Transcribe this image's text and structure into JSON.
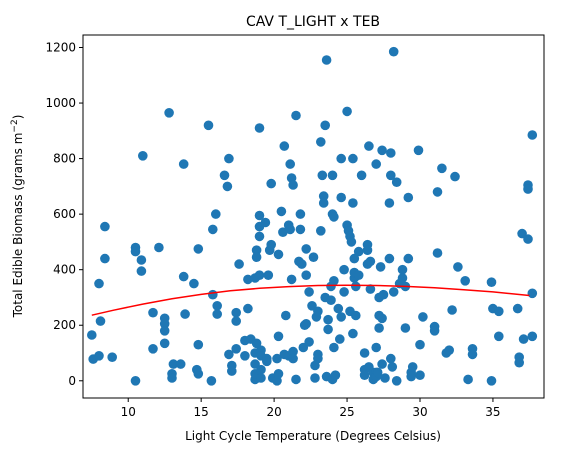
{
  "chart_data": {
    "type": "scatter",
    "title": "CAV T_LIGHT x TEB",
    "xlabel": "Light Cycle Temperature (Degrees Celsius)",
    "ylabel": "Total Edible Biomass (grams m",
    "ylabel_sup": "−2",
    "ylabel_end": ")",
    "xlim": [
      6.9,
      38.5
    ],
    "ylim": [
      -62,
      1245
    ],
    "xticks": [
      10,
      15,
      20,
      25,
      30,
      35
    ],
    "yticks": [
      0,
      200,
      400,
      600,
      800,
      1000,
      1200
    ],
    "grid": false,
    "colors": {
      "points": "#1f77b4",
      "fit": "#ff0000"
    },
    "points": [
      [
        7.5,
        165
      ],
      [
        7.6,
        78
      ],
      [
        8.1,
        215
      ],
      [
        8.0,
        350
      ],
      [
        8.0,
        90
      ],
      [
        8.4,
        440
      ],
      [
        8.4,
        555
      ],
      [
        8.9,
        85
      ],
      [
        10.5,
        0
      ],
      [
        10.5,
        480
      ],
      [
        10.5,
        465
      ],
      [
        10.9,
        435
      ],
      [
        10.9,
        395
      ],
      [
        11.0,
        810
      ],
      [
        11.7,
        115
      ],
      [
        11.7,
        245
      ],
      [
        12.1,
        480
      ],
      [
        12.5,
        225
      ],
      [
        12.5,
        205
      ],
      [
        12.5,
        180
      ],
      [
        12.5,
        135
      ],
      [
        12.8,
        965
      ],
      [
        13.0,
        25
      ],
      [
        13.0,
        10
      ],
      [
        13.1,
        60
      ],
      [
        13.6,
        60
      ],
      [
        13.8,
        780
      ],
      [
        13.8,
        375
      ],
      [
        13.9,
        240
      ],
      [
        14.5,
        350
      ],
      [
        14.7,
        40
      ],
      [
        14.8,
        130
      ],
      [
        14.8,
        475
      ],
      [
        14.8,
        25
      ],
      [
        15.5,
        920
      ],
      [
        15.8,
        310
      ],
      [
        15.8,
        545
      ],
      [
        16.0,
        600
      ],
      [
        16.1,
        270
      ],
      [
        16.1,
        240
      ],
      [
        15.7,
        0
      ],
      [
        16.6,
        740
      ],
      [
        16.8,
        700
      ],
      [
        16.9,
        800
      ],
      [
        16.9,
        95
      ],
      [
        17.1,
        55
      ],
      [
        17.1,
        35
      ],
      [
        17.4,
        115
      ],
      [
        17.4,
        245
      ],
      [
        17.4,
        215
      ],
      [
        17.6,
        420
      ],
      [
        18.0,
        145
      ],
      [
        18.0,
        90
      ],
      [
        18.2,
        260
      ],
      [
        18.2,
        365
      ],
      [
        18.4,
        150
      ],
      [
        18.7,
        5
      ],
      [
        18.7,
        25
      ],
      [
        18.7,
        100
      ],
      [
        18.7,
        60
      ],
      [
        18.7,
        370
      ],
      [
        18.8,
        470
      ],
      [
        18.8,
        445
      ],
      [
        18.8,
        135
      ],
      [
        19.0,
        380
      ],
      [
        19.0,
        595
      ],
      [
        19.0,
        555
      ],
      [
        19.0,
        910
      ],
      [
        19.0,
        520
      ],
      [
        19.1,
        110
      ],
      [
        19.1,
        90
      ],
      [
        19.1,
        40
      ],
      [
        19.1,
        10
      ],
      [
        19.4,
        570
      ],
      [
        19.5,
        80
      ],
      [
        19.5,
        70
      ],
      [
        19.6,
        380
      ],
      [
        19.7,
        470
      ],
      [
        19.8,
        490
      ],
      [
        19.8,
        710
      ],
      [
        19.9,
        10
      ],
      [
        20.2,
        80
      ],
      [
        20.2,
        0
      ],
      [
        20.3,
        455
      ],
      [
        20.3,
        160
      ],
      [
        20.3,
        25
      ],
      [
        20.5,
        610
      ],
      [
        20.6,
        535
      ],
      [
        20.7,
        845
      ],
      [
        20.7,
        95
      ],
      [
        20.8,
        235
      ],
      [
        21.0,
        560
      ],
      [
        21.0,
        90
      ],
      [
        21.1,
        780
      ],
      [
        21.1,
        545
      ],
      [
        21.2,
        730
      ],
      [
        21.2,
        365
      ],
      [
        21.3,
        705
      ],
      [
        21.3,
        105
      ],
      [
        21.3,
        80
      ],
      [
        21.5,
        955
      ],
      [
        21.5,
        5
      ],
      [
        21.7,
        430
      ],
      [
        21.8,
        600
      ],
      [
        21.8,
        545
      ],
      [
        21.9,
        420
      ],
      [
        22.0,
        120
      ],
      [
        22.1,
        200
      ],
      [
        22.2,
        475
      ],
      [
        22.2,
        380
      ],
      [
        22.2,
        205
      ],
      [
        22.4,
        320
      ],
      [
        22.4,
        140
      ],
      [
        22.6,
        270
      ],
      [
        22.7,
        445
      ],
      [
        22.8,
        10
      ],
      [
        22.8,
        55
      ],
      [
        22.9,
        230
      ],
      [
        23.0,
        95
      ],
      [
        23.0,
        80
      ],
      [
        23.0,
        250
      ],
      [
        23.2,
        860
      ],
      [
        23.2,
        540
      ],
      [
        23.3,
        740
      ],
      [
        23.4,
        640
      ],
      [
        23.4,
        665
      ],
      [
        23.5,
        920
      ],
      [
        23.5,
        300
      ],
      [
        23.6,
        1155
      ],
      [
        23.6,
        15
      ],
      [
        23.7,
        185
      ],
      [
        23.7,
        220
      ],
      [
        23.9,
        340
      ],
      [
        23.9,
        290
      ],
      [
        24.0,
        740
      ],
      [
        24.0,
        600
      ],
      [
        24.1,
        360
      ],
      [
        24.1,
        590
      ],
      [
        24.0,
        5
      ],
      [
        24.1,
        120
      ],
      [
        24.2,
        20
      ],
      [
        24.4,
        260
      ],
      [
        24.5,
        150
      ],
      [
        24.6,
        230
      ],
      [
        24.6,
        800
      ],
      [
        24.6,
        660
      ],
      [
        24.8,
        400
      ],
      [
        24.8,
        320
      ],
      [
        25.0,
        970
      ],
      [
        25.0,
        560
      ],
      [
        25.1,
        540
      ],
      [
        25.2,
        520
      ],
      [
        25.2,
        250
      ],
      [
        25.3,
        500
      ],
      [
        25.4,
        170
      ],
      [
        25.4,
        800
      ],
      [
        25.4,
        640
      ],
      [
        25.5,
        370
      ],
      [
        25.5,
        440
      ],
      [
        25.5,
        390
      ],
      [
        25.6,
        235
      ],
      [
        25.6,
        340
      ],
      [
        25.8,
        465
      ],
      [
        25.8,
        380
      ],
      [
        26.0,
        740
      ],
      [
        26.2,
        20
      ],
      [
        26.2,
        40
      ],
      [
        26.2,
        100
      ],
      [
        26.4,
        490
      ],
      [
        26.4,
        470
      ],
      [
        26.4,
        420
      ],
      [
        26.5,
        845
      ],
      [
        26.5,
        50
      ],
      [
        26.6,
        330
      ],
      [
        26.6,
        430
      ],
      [
        26.8,
        5
      ],
      [
        26.8,
        30
      ],
      [
        27.0,
        120
      ],
      [
        27.0,
        30
      ],
      [
        27.0,
        15
      ],
      [
        27.0,
        780
      ],
      [
        27.1,
        30
      ],
      [
        27.2,
        300
      ],
      [
        27.2,
        235
      ],
      [
        27.2,
        190
      ],
      [
        27.3,
        410
      ],
      [
        27.4,
        830
      ],
      [
        27.4,
        60
      ],
      [
        27.4,
        225
      ],
      [
        27.5,
        310
      ],
      [
        27.6,
        10
      ],
      [
        27.9,
        640
      ],
      [
        27.9,
        440
      ],
      [
        28.0,
        820
      ],
      [
        28.0,
        740
      ],
      [
        28.0,
        80
      ],
      [
        28.1,
        50
      ],
      [
        28.2,
        1185
      ],
      [
        28.2,
        320
      ],
      [
        28.4,
        715
      ],
      [
        28.4,
        0
      ],
      [
        28.6,
        350
      ],
      [
        28.8,
        400
      ],
      [
        28.8,
        370
      ],
      [
        29.0,
        340
      ],
      [
        29.0,
        190
      ],
      [
        29.2,
        660
      ],
      [
        29.2,
        440
      ],
      [
        29.4,
        30
      ],
      [
        29.4,
        15
      ],
      [
        29.5,
        50
      ],
      [
        29.9,
        830
      ],
      [
        30.0,
        20
      ],
      [
        30.0,
        130
      ],
      [
        30.2,
        230
      ],
      [
        31.0,
        195
      ],
      [
        31.0,
        180
      ],
      [
        31.2,
        460
      ],
      [
        31.2,
        680
      ],
      [
        31.5,
        765
      ],
      [
        31.8,
        100
      ],
      [
        32.0,
        110
      ],
      [
        32.2,
        255
      ],
      [
        32.4,
        735
      ],
      [
        32.6,
        410
      ],
      [
        33.1,
        360
      ],
      [
        33.3,
        5
      ],
      [
        33.6,
        115
      ],
      [
        33.6,
        95
      ],
      [
        34.9,
        355
      ],
      [
        34.9,
        0
      ],
      [
        35.0,
        260
      ],
      [
        35.4,
        250
      ],
      [
        35.4,
        160
      ],
      [
        36.7,
        260
      ],
      [
        36.8,
        85
      ],
      [
        36.8,
        65
      ],
      [
        37.0,
        530
      ],
      [
        37.1,
        150
      ],
      [
        37.4,
        705
      ],
      [
        37.4,
        690
      ],
      [
        37.4,
        510
      ],
      [
        37.7,
        885
      ],
      [
        37.7,
        315
      ],
      [
        37.7,
        160
      ]
    ],
    "fit_line": [
      [
        7.5,
        236
      ],
      [
        9,
        254
      ],
      [
        11,
        276
      ],
      [
        13,
        295
      ],
      [
        15,
        311
      ],
      [
        17,
        324
      ],
      [
        19,
        333
      ],
      [
        21,
        339
      ],
      [
        23,
        343
      ],
      [
        25,
        344
      ],
      [
        27,
        343
      ],
      [
        29,
        340
      ],
      [
        31,
        335
      ],
      [
        33,
        328
      ],
      [
        35,
        320
      ],
      [
        37.5,
        307
      ]
    ]
  }
}
